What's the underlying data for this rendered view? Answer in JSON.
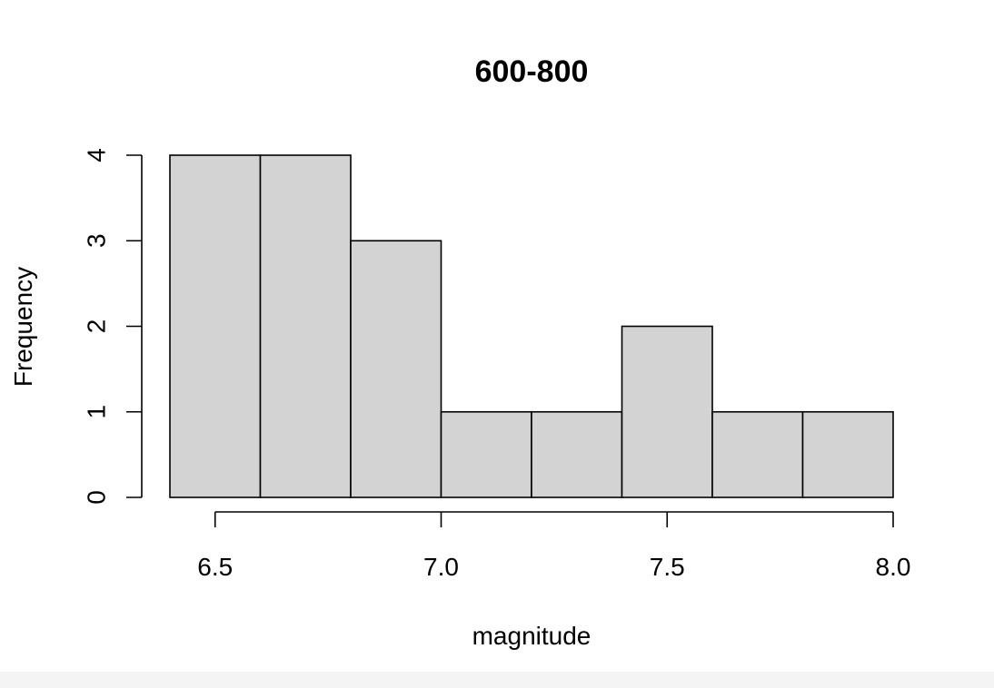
{
  "chart_data": {
    "type": "bar",
    "title": "600-800",
    "xlabel": "magnitude",
    "ylabel": "Frequency",
    "bins": [
      {
        "start": 6.4,
        "end": 6.6,
        "count": 4
      },
      {
        "start": 6.6,
        "end": 6.8,
        "count": 4
      },
      {
        "start": 6.8,
        "end": 7.0,
        "count": 3
      },
      {
        "start": 7.0,
        "end": 7.2,
        "count": 1
      },
      {
        "start": 7.2,
        "end": 7.4,
        "count": 1
      },
      {
        "start": 7.4,
        "end": 7.6,
        "count": 2
      },
      {
        "start": 7.6,
        "end": 7.8,
        "count": 1
      },
      {
        "start": 7.8,
        "end": 8.0,
        "count": 1
      }
    ],
    "xlim": [
      6.4,
      8.0
    ],
    "ylim": [
      0,
      4
    ],
    "x_ticks": [
      "6.5",
      "7.0",
      "7.5",
      "8.0"
    ],
    "y_ticks": [
      "0",
      "1",
      "2",
      "3",
      "4"
    ],
    "bar_fill": "#d3d3d3",
    "bar_stroke": "#000000",
    "grid": false
  }
}
